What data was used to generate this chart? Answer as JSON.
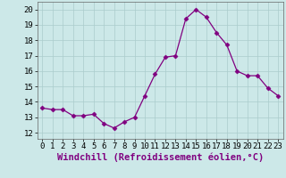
{
  "x": [
    0,
    1,
    2,
    3,
    4,
    5,
    6,
    7,
    8,
    9,
    10,
    11,
    12,
    13,
    14,
    15,
    16,
    17,
    18,
    19,
    20,
    21,
    22,
    23
  ],
  "y": [
    13.6,
    13.5,
    13.5,
    13.1,
    13.1,
    13.2,
    12.6,
    12.3,
    12.7,
    13.0,
    14.4,
    15.8,
    16.9,
    17.0,
    19.4,
    20.0,
    19.5,
    18.5,
    17.7,
    16.0,
    15.7,
    15.7,
    14.9,
    14.4
  ],
  "line_color": "#800080",
  "marker": "D",
  "marker_size": 2.5,
  "bg_color": "#cce8e8",
  "grid_color": "#aacccc",
  "ylabel_ticks": [
    12,
    13,
    14,
    15,
    16,
    17,
    18,
    19,
    20
  ],
  "xlabel": "Windchill (Refroidissement éolien,°C)",
  "xlabel_fontsize": 7.5,
  "tick_fontsize": 6.5,
  "ylim": [
    11.6,
    20.5
  ],
  "xlim": [
    -0.5,
    23.5
  ]
}
